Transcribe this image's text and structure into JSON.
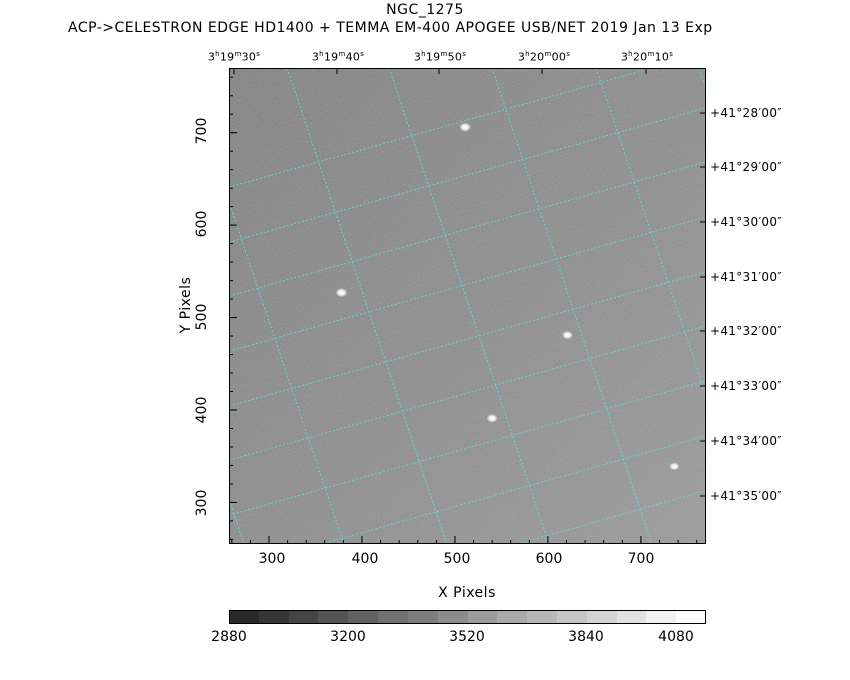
{
  "header": {
    "title": "NGC_1275",
    "subtitle": "ACP->CELESTRON EDGE HD1400 + TEMMA EM-400 APOGEE USB/NET   2019 Jan 13    Exp"
  },
  "axes": {
    "x_title": "X Pixels",
    "y_title": "Y Pixels",
    "x_ticks": [
      "300",
      "400",
      "500",
      "600",
      "700"
    ],
    "y_ticks": [
      "300",
      "400",
      "500",
      "600",
      "700"
    ],
    "ra_labels": [
      {
        "h": "3",
        "m": "19",
        "s": "30"
      },
      {
        "h": "3",
        "m": "19",
        "s": "40"
      },
      {
        "h": "3",
        "m": "19",
        "s": "50"
      },
      {
        "h": "3",
        "m": "20",
        "s": "00"
      },
      {
        "h": "3",
        "m": "20",
        "s": "10"
      }
    ],
    "ra_units": {
      "h": "h",
      "m": "m",
      "s": "s"
    },
    "dec_labels": [
      "+41°28′00″",
      "+41°29′00″",
      "+41°30′00″",
      "+41°31′00″",
      "+41°32′00″",
      "+41°33′00″",
      "+41°34′00″",
      "+41°35′00″"
    ]
  },
  "image": {
    "x_range": [
      257,
      770
    ],
    "y_range": [
      255,
      770
    ],
    "background_color": "#8e8e8e",
    "grid_color": "#5fd8dc",
    "stars": [
      {
        "x": 511,
        "y": 706,
        "brightness": 1.0
      },
      {
        "x": 378,
        "y": 527,
        "brightness": 1.0
      },
      {
        "x": 540,
        "y": 391,
        "brightness": 0.9
      },
      {
        "x": 621,
        "y": 481,
        "brightness": 0.85
      },
      {
        "x": 736,
        "y": 339,
        "brightness": 0.7
      }
    ]
  },
  "colorbar": {
    "tick_labels": [
      "2880",
      "3200",
      "3520",
      "3840",
      "4080"
    ],
    "range": [
      2880,
      4160
    ],
    "steps": 16
  }
}
